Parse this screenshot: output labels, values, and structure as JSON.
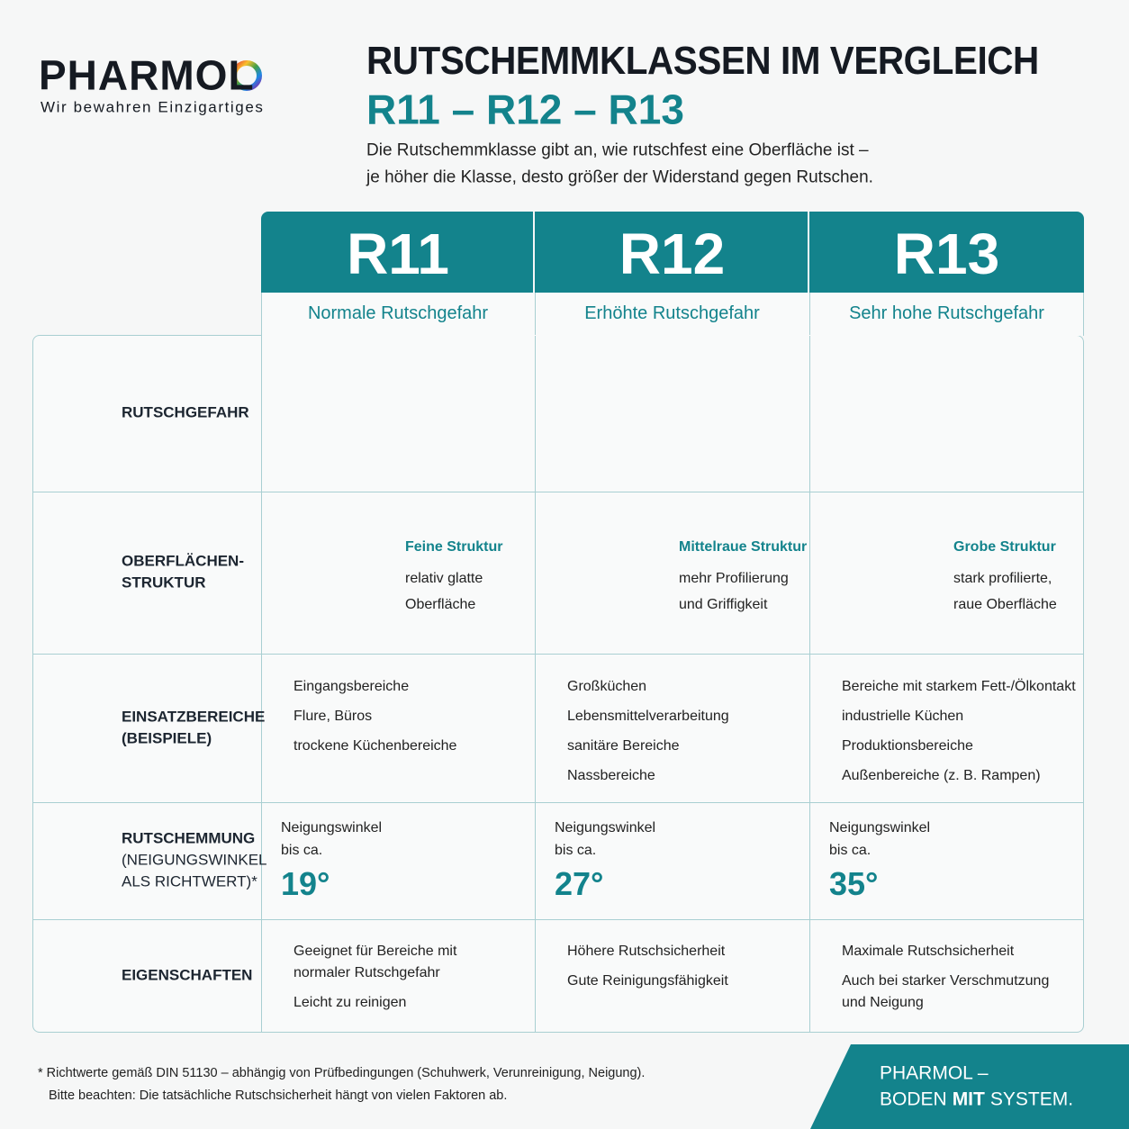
{
  "logo": {
    "brand": "PHARMOL",
    "tagline": "Wir bewahren Einzigartiges"
  },
  "header": {
    "title": "RUTSCHEMMKLASSEN IM VERGLEICH",
    "classes_line": "R11 – R12 – R13",
    "intro": [
      "Die Rutschemmklasse gibt an, wie rutschfest eine Oberfläche ist –",
      "je höher die Klasse, desto größer der Widerstand gegen Rutschen."
    ]
  },
  "table": {
    "columns": [
      {
        "class": "R11",
        "risk": "Normale Rutschgefahr"
      },
      {
        "class": "R12",
        "risk": "Erhöhte Rutschgefahr"
      },
      {
        "class": "R13",
        "risk": "Sehr hohe Rutschgefahr"
      }
    ],
    "rows": [
      {
        "label": [
          "RUTSCHGEFAHR"
        ]
      },
      {
        "label": [
          "OBERFLÄCHEN-",
          "STRUKTUR"
        ],
        "cells": [
          {
            "title": "Feine Struktur",
            "lines": [
              "relativ glatte",
              "Oberfläche"
            ]
          },
          {
            "title": "Mittelraue Struktur",
            "lines": [
              "mehr Profilierung",
              "und Griffigkeit"
            ]
          },
          {
            "title": "Grobe Struktur",
            "lines": [
              "stark profilierte,",
              "raue Oberfläche"
            ]
          }
        ]
      },
      {
        "label": [
          "EINSATZBEREICHE",
          "(BEISPIELE)"
        ],
        "cells": [
          [
            [
              "Eingangsbereiche"
            ],
            [
              "Flure, Büros"
            ],
            [
              "trockene Küchenbereiche"
            ]
          ],
          [
            [
              "Großküchen"
            ],
            [
              "Lebensmittelverarbeitung"
            ],
            [
              "sanitäre Bereiche"
            ],
            [
              "Nassbereiche"
            ]
          ],
          [
            [
              "Bereiche mit starkem Fett-/Ölkontakt"
            ],
            [
              "industrielle Küchen"
            ],
            [
              "Produktionsbereiche"
            ],
            [
              "Außenbereiche (z. B. Rampen)"
            ]
          ]
        ]
      },
      {
        "label": [
          "RUTSCHEMMUNG",
          "(NEIGUNGSWINKEL",
          "ALS RICHTWERT)*"
        ],
        "cells": [
          {
            "caption": [
              "Neigungswinkel",
              "bis ca."
            ],
            "angle": "19°"
          },
          {
            "caption": [
              "Neigungswinkel",
              "bis ca."
            ],
            "angle": "27°"
          },
          {
            "caption": [
              "Neigungswinkel",
              "bis ca."
            ],
            "angle": "35°"
          }
        ]
      },
      {
        "label": [
          "EIGENSCHAFTEN"
        ],
        "cells": [
          [
            [
              "Geeignet für Bereiche mit",
              "normaler Rutschgefahr"
            ],
            [
              "Leicht zu reinigen"
            ]
          ],
          [
            [
              "Höhere Rutschsicherheit"
            ],
            [
              "Gute Reinigungsfähigkeit"
            ]
          ],
          [
            [
              "Maximale Rutschsicherheit"
            ],
            [
              "Auch bei starker Verschmutzung",
              "und Neigung"
            ]
          ]
        ]
      }
    ]
  },
  "footer": {
    "note": [
      "* Richtwerte gemäß DIN 51130 – abhängig von Prüfbedingungen (Schuhwerk, Verunreinigung, Neigung).",
      "Bitte beachten: Die tatsächliche Rutschsicherheit hängt von vielen Faktoren ab."
    ],
    "slogan": {
      "line1": "PHARMOL –",
      "before": "BODEN",
      "bold": "MIT",
      "after": "SYSTEM."
    }
  }
}
